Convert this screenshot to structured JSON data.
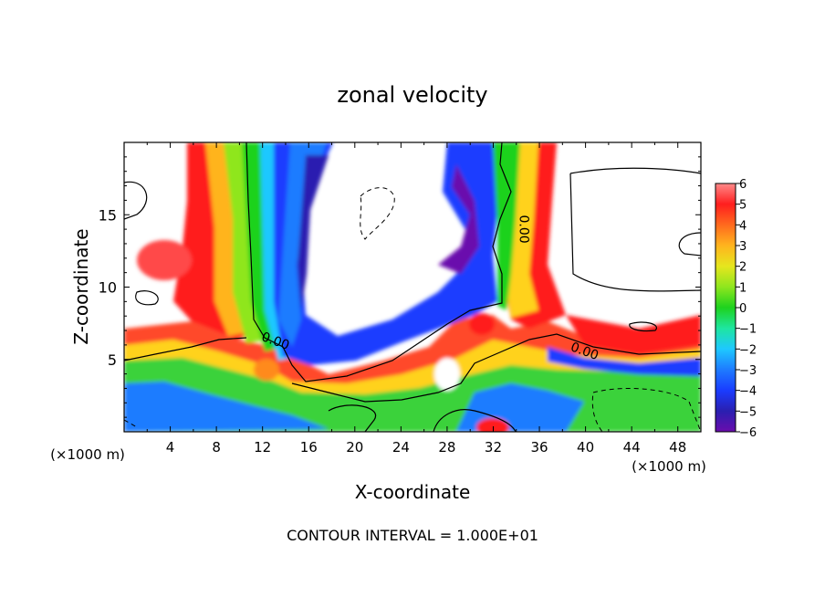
{
  "chart_data": {
    "type": "heatmap",
    "title": "zonal velocity",
    "xlabel": "X-coordinate",
    "ylabel": "Z-coordinate",
    "x_unit_label_left": "(×1000 m)",
    "x_unit_label_right": "(×1000 m)",
    "footer": "CONTOUR INTERVAL = 1.000E+01",
    "xlim": [
      0,
      50
    ],
    "ylim": [
      0,
      20
    ],
    "x_ticks": [
      4,
      8,
      12,
      16,
      20,
      24,
      28,
      32,
      36,
      40,
      44,
      48
    ],
    "y_ticks": [
      5,
      10,
      15
    ],
    "colorbar": {
      "ticks": [
        6,
        5,
        4,
        3,
        2,
        1,
        0,
        -1,
        -2,
        -3,
        -4,
        -5,
        -6
      ],
      "range": [
        -6,
        6
      ],
      "colors": [
        "#6a0dad",
        "#2a1fb0",
        "#1a3cff",
        "#1e7bff",
        "#1ec8ff",
        "#1ee6a0",
        "#1ed21e",
        "#8fe61e",
        "#e6e61e",
        "#ffb41e",
        "#ff6a1e",
        "#ff1e1e",
        "#ff8a8a"
      ]
    },
    "contour_labels": [
      {
        "text": "0.00",
        "x": 13.0,
        "y": 6.0
      },
      {
        "text": "0.00",
        "x": 34.3,
        "y": 14.0
      },
      {
        "text": "0.00",
        "x": 39.8,
        "y": 5.3
      }
    ],
    "grid": false
  }
}
